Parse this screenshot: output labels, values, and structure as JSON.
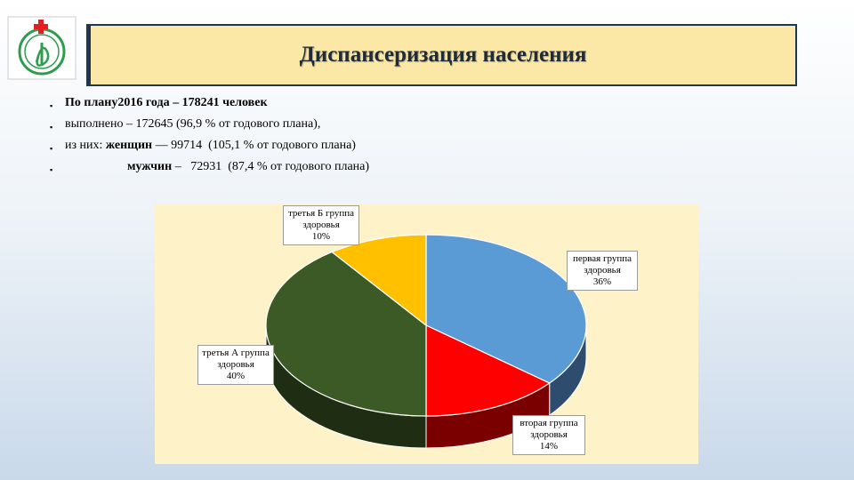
{
  "title": "Диспансеризация населения",
  "bullets": [
    {
      "marker": "▪",
      "parts": [
        {
          "text": "По плану2016 года – 178241 человек",
          "bold": true
        }
      ]
    },
    {
      "marker": "▪",
      "parts": [
        {
          "text": "выполнено – 172645 (96,9 % от годового плана),",
          "bold": false
        }
      ]
    },
    {
      "marker": "▪",
      "parts": [
        {
          "text": "из них: ",
          "bold": false
        },
        {
          "text": "женщин",
          "bold": true
        },
        {
          "text": " — 99714  (105,1 % от годового плана)",
          "bold": false
        }
      ]
    },
    {
      "marker": "▪",
      "parts": [
        {
          "text": "                    ",
          "bold": false
        },
        {
          "text": "мужчин",
          "bold": true
        },
        {
          "text": " –   72931  (87,4 % от годового плана)",
          "bold": false
        }
      ]
    }
  ],
  "chart_data": {
    "type": "pie",
    "style": "3d",
    "categories": [
      "первая группа здоровья",
      "вторая группа здоровья",
      "третья А группа здоровья",
      "третья Б группа здоровья"
    ],
    "values": [
      36,
      14,
      40,
      10
    ],
    "labels": [
      {
        "line1": "первая группа",
        "line2": "здоровья",
        "value": "36%"
      },
      {
        "line1": "вторая группа",
        "line2": "здоровья",
        "value": "14%"
      },
      {
        "line1": "третья А группа",
        "line2": "здоровья",
        "value": "40%"
      },
      {
        "line1": "третья Б группа",
        "line2": "здоровья",
        "value": "10%"
      }
    ],
    "colors": [
      "#5b9bd5",
      "#ff0000",
      "#3b5a26",
      "#ffc000"
    ],
    "side_colors": [
      "#2e4d6e",
      "#7a0000",
      "#1f2e12",
      "#a07800"
    ],
    "background": "#fdf2c8"
  }
}
